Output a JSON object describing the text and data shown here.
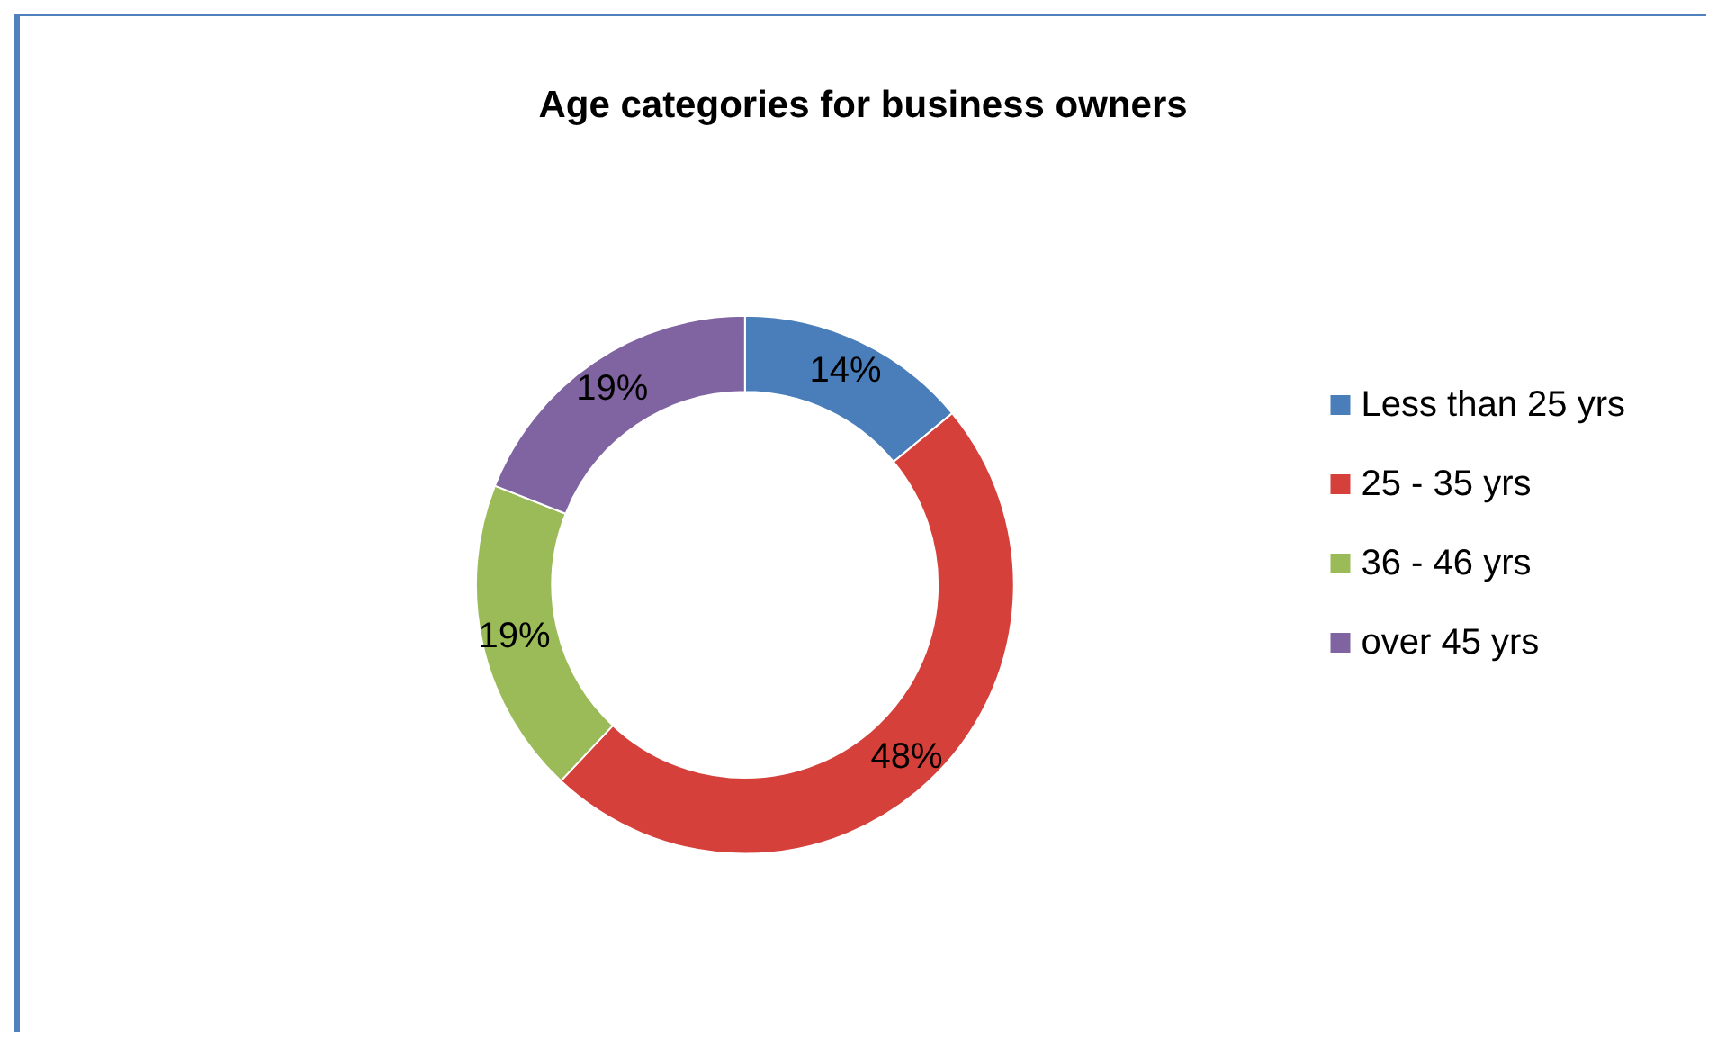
{
  "chart_data": {
    "type": "donut",
    "title": "Age categories for business owners",
    "categories": [
      "Less than 25 yrs",
      "25 - 35 yrs",
      "36 - 46 yrs",
      "over 45 yrs"
    ],
    "values": [
      14,
      48,
      19,
      19
    ],
    "colors": [
      "#4a7ebb",
      "#d6403b",
      "#9bbb59",
      "#8064a2"
    ],
    "value_labels": [
      "14%",
      "48%",
      "19%",
      "19%"
    ],
    "legend": "right"
  }
}
